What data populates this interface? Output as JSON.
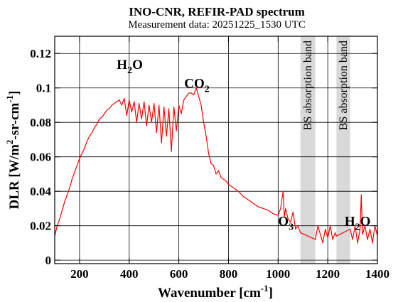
{
  "chart_data": {
    "type": "line",
    "title": "INO-CNR, REFIR-PAD spectrum",
    "subtitle": "Measurement data: 20251225_1530 UTC",
    "xlabel": {
      "text": "Wavenumber [cm",
      "sup": "-1",
      "close": "]"
    },
    "ylabel": {
      "text": "DLR [W/m",
      "sup1": "2",
      "mid": "-sr-cm",
      "sup2": "-1",
      "close": "]"
    },
    "xlim": [
      100,
      1400
    ],
    "ylim": [
      -0.002,
      0.13
    ],
    "xticks": [
      200,
      400,
      600,
      800,
      1000,
      1200,
      1400
    ],
    "yticks": [
      0,
      0.02,
      0.04,
      0.06,
      0.08,
      0.1,
      0.12
    ],
    "grid": true,
    "line_color": "#ff0000",
    "bands": [
      {
        "label": "BS absorption band",
        "x_range": [
          1090,
          1150
        ],
        "color": "#d9d9d9"
      },
      {
        "label": "BS absorption band",
        "x_range": [
          1235,
          1290
        ],
        "color": "#d9d9d9"
      }
    ],
    "annotations": [
      {
        "base": "H",
        "sub": "2",
        "rest": "O",
        "x": 350,
        "y": 0.111
      },
      {
        "base": "CO",
        "sub": "2",
        "rest": "",
        "x": 622,
        "y": 0.1
      },
      {
        "base": "O",
        "sub": "3",
        "rest": "",
        "x": 1000,
        "y": 0.02
      },
      {
        "base": "H",
        "sub": "2",
        "rest": "O",
        "x": 1268,
        "y": 0.02
      }
    ],
    "series": [
      {
        "x": [
          100,
          110,
          120,
          130,
          140,
          150,
          160,
          170,
          180,
          190,
          200,
          210,
          220,
          230,
          240,
          250,
          260,
          270,
          280,
          290,
          300,
          310,
          320,
          330,
          340,
          350,
          360,
          370,
          380,
          390,
          400,
          410,
          420,
          430,
          440,
          450,
          460,
          470,
          480,
          490,
          500,
          510,
          520,
          530,
          540,
          550,
          560,
          570,
          580,
          590,
          600,
          610,
          620,
          630,
          640,
          650,
          660,
          670,
          680,
          690,
          700,
          710,
          720,
          730,
          740,
          750,
          760,
          770,
          780,
          790,
          800,
          820,
          840,
          860,
          880,
          900,
          920,
          940,
          960,
          980,
          1000,
          1010,
          1020,
          1025,
          1030,
          1040,
          1050,
          1060,
          1070,
          1080,
          1090,
          1150,
          1160,
          1170,
          1180,
          1190,
          1200,
          1210,
          1220,
          1230,
          1235,
          1290,
          1300,
          1310,
          1320,
          1330,
          1335,
          1340,
          1350,
          1360,
          1370,
          1380,
          1390,
          1400
        ],
        "y": [
          0.014,
          0.02,
          0.024,
          0.029,
          0.034,
          0.038,
          0.042,
          0.047,
          0.051,
          0.055,
          0.059,
          0.062,
          0.065,
          0.069,
          0.072,
          0.074,
          0.077,
          0.079,
          0.082,
          0.083,
          0.085,
          0.087,
          0.088,
          0.09,
          0.091,
          0.092,
          0.093,
          0.09,
          0.094,
          0.084,
          0.093,
          0.086,
          0.092,
          0.08,
          0.091,
          0.082,
          0.092,
          0.078,
          0.09,
          0.08,
          0.091,
          0.074,
          0.09,
          0.068,
          0.089,
          0.072,
          0.088,
          0.063,
          0.089,
          0.075,
          0.09,
          0.085,
          0.093,
          0.095,
          0.097,
          0.097,
          0.096,
          0.1,
          0.095,
          0.09,
          0.08,
          0.072,
          0.062,
          0.056,
          0.055,
          0.05,
          0.052,
          0.048,
          0.047,
          0.046,
          0.044,
          0.042,
          0.04,
          0.037,
          0.035,
          0.033,
          0.031,
          0.03,
          0.029,
          0.027,
          0.026,
          0.03,
          0.04,
          0.025,
          0.03,
          0.024,
          0.022,
          0.028,
          0.018,
          0.02,
          0.016,
          0.012,
          0.02,
          0.015,
          0.01,
          0.018,
          0.013,
          0.02,
          0.012,
          0.016,
          0.014,
          0.018,
          0.012,
          0.02,
          0.01,
          0.018,
          0.038,
          0.015,
          0.02,
          0.012,
          0.018,
          0.01,
          0.02,
          0.014
        ]
      }
    ]
  }
}
